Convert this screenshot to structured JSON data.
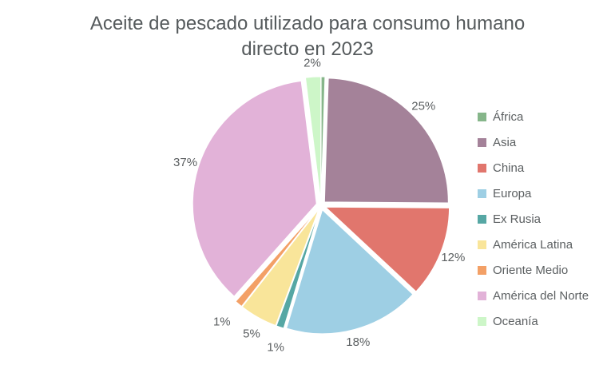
{
  "chart_data": {
    "type": "pie",
    "title": "Aceite de pescado utilizado para consumo humano directo en 2023",
    "slices": [
      {
        "label": "África",
        "value": 0.5,
        "data_label": "",
        "color": "#86b68a"
      },
      {
        "label": "Asia",
        "value": 25,
        "data_label": "25%",
        "color": "#a48299"
      },
      {
        "label": "China",
        "value": 12,
        "data_label": "12%",
        "color": "#e1766d"
      },
      {
        "label": "Europa",
        "value": 18,
        "data_label": "18%",
        "color": "#9ecfe4"
      },
      {
        "label": "Ex Rusia",
        "value": 1,
        "data_label": "1%",
        "color": "#56a7a4"
      },
      {
        "label": "América Latina",
        "value": 5,
        "data_label": "5%",
        "color": "#f9e59a"
      },
      {
        "label": "Oriente Medio",
        "value": 1,
        "data_label": "1%",
        "color": "#f3a066"
      },
      {
        "label": "América del Norte",
        "value": 37,
        "data_label": "37%",
        "color": "#e2b2d8"
      },
      {
        "label": "Oceanía",
        "value": 2,
        "data_label": "2%",
        "color": "#cdf6c8"
      }
    ],
    "legend_position": "right"
  }
}
